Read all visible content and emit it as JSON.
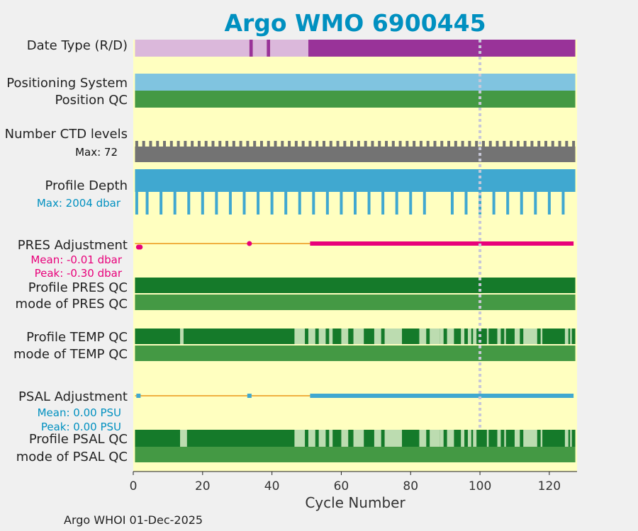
{
  "chart_data": {
    "type": "timeline",
    "title": "Argo WMO 6900445",
    "title_color": "#0090c0",
    "xlabel": "Cycle Number",
    "xlim": [
      0,
      128
    ],
    "xticks": [
      0,
      20,
      40,
      60,
      80,
      100,
      120
    ],
    "marker_cycle": 100,
    "footer": "Argo WHOI 01-Dec-2025",
    "colors": {
      "background": "#ffffc0",
      "realtime": "#dbb8db",
      "delayed": "#993399",
      "positioning": "#80c4e0",
      "qc_good": "#449944",
      "qc_dark": "#157a2a",
      "qc_light": "#bcdcb0",
      "ctd": "#737373",
      "depth": "#40a8d0",
      "pres_adj": "#e8007a",
      "psal_adj": "#40a8d0",
      "adj_line": "#f0b040",
      "marker": "#c8c8d8"
    },
    "rows": [
      {
        "label": "Date Type (R/D)",
        "color": "#222222"
      },
      {
        "label": "Positioning System",
        "color": "#222222"
      },
      {
        "label": "Position QC",
        "color": "#222222"
      },
      {
        "label": "Number CTD levels",
        "color": "#222222"
      },
      {
        "label": "Profile Depth",
        "color": "#222222"
      },
      {
        "label": "PRES Adjustment",
        "color": "#222222"
      },
      {
        "label": "Profile PRES QC",
        "color": "#222222"
      },
      {
        "label": "mode of PRES QC",
        "color": "#222222"
      },
      {
        "label": "Profile TEMP QC",
        "color": "#222222"
      },
      {
        "label": "mode of TEMP QC",
        "color": "#222222"
      },
      {
        "label": "PSAL Adjustment",
        "color": "#222222"
      },
      {
        "label": "Profile PSAL QC",
        "color": "#222222"
      },
      {
        "label": "mode of PSAL QC",
        "color": "#222222"
      }
    ],
    "annotations": {
      "ctd_max": "Max: 72",
      "depth_max": "Max: 2004 dbar",
      "pres_mean": "Mean: -0.01 dbar",
      "pres_peak": "Peak: -0.30 dbar",
      "psal_mean": "Mean: 0.00 PSU",
      "psal_peak": "Peak: 0.00 PSU"
    },
    "data_mode_ranges": [
      {
        "start": 0.5,
        "end": 33.5,
        "mode": "R"
      },
      {
        "start": 33.5,
        "end": 34.5,
        "mode": "D"
      },
      {
        "start": 34.5,
        "end": 38.5,
        "mode": "R"
      },
      {
        "start": 38.5,
        "end": 39.5,
        "mode": "D"
      },
      {
        "start": 39.5,
        "end": 50.5,
        "mode": "R"
      },
      {
        "start": 50.5,
        "end": 127.5,
        "mode": "D"
      }
    ],
    "ctd_spike_cycles": [
      1,
      3,
      5,
      7,
      9,
      11,
      13,
      15,
      17,
      19,
      21,
      23,
      25,
      27,
      29,
      31,
      33,
      35,
      37,
      39,
      41,
      43,
      45,
      47,
      49,
      51,
      53,
      55,
      57,
      59,
      61,
      63,
      65,
      67,
      69,
      71,
      73,
      75,
      77,
      79,
      81,
      83,
      85,
      87,
      89,
      91,
      93,
      95,
      97,
      99,
      101,
      103,
      105,
      107,
      109,
      111,
      113,
      115,
      117,
      119,
      121,
      123,
      125,
      127
    ],
    "depth_deep_cycles": [
      1,
      4,
      8,
      12,
      16,
      20,
      24,
      28,
      32,
      36,
      40,
      44,
      48,
      52,
      56,
      60,
      64,
      68,
      72,
      76,
      80,
      84,
      92,
      96,
      100,
      104,
      108,
      112,
      116,
      120,
      124
    ],
    "adjustment": {
      "pres_points": [
        1.5,
        2,
        33.5
      ],
      "pres_line_start": 51,
      "pres_line_end": 127,
      "psal_points": [
        1.5,
        33.5
      ],
      "psal_line_start": 51,
      "psal_line_end": 127
    },
    "temp_qc_light_segments": [
      [
        13.5,
        14.5
      ],
      [
        46.5,
        49.5
      ],
      [
        50.5,
        52.5
      ],
      [
        53.5,
        55.5
      ],
      [
        56.5,
        57.5
      ],
      [
        60,
        62
      ],
      [
        63.5,
        66.5
      ],
      [
        69.5,
        71.5
      ],
      [
        72.5,
        77.5
      ],
      [
        82.5,
        84.5
      ],
      [
        85.5,
        88.5
      ],
      [
        88.5,
        89.5
      ],
      [
        90.5,
        92.5
      ],
      [
        94.5,
        95.5
      ],
      [
        96.5,
        97.5
      ],
      [
        98,
        99
      ],
      [
        102,
        102.5
      ],
      [
        105,
        106
      ],
      [
        107,
        107.5
      ],
      [
        110,
        111.5
      ],
      [
        112.5,
        116.5
      ],
      [
        117.5,
        118
      ],
      [
        124.5,
        125.5
      ],
      [
        126,
        126.5
      ]
    ],
    "psal_qc_light_segments": [
      [
        13.5,
        15.5
      ],
      [
        46.5,
        49.5
      ],
      [
        50.5,
        52.5
      ],
      [
        53.5,
        55.5
      ],
      [
        56.5,
        57.5
      ],
      [
        60,
        62
      ],
      [
        63.5,
        66.5
      ],
      [
        69.5,
        71.5
      ],
      [
        72.5,
        77.5
      ],
      [
        82.5,
        84.5
      ],
      [
        85.5,
        88.5
      ],
      [
        88.5,
        89.5
      ],
      [
        90.5,
        92.5
      ],
      [
        94.5,
        95.5
      ],
      [
        96.5,
        97.5
      ],
      [
        98,
        99
      ],
      [
        102,
        102.5
      ],
      [
        105,
        106
      ],
      [
        107,
        107.5
      ],
      [
        110,
        111.5
      ],
      [
        112.5,
        116.5
      ],
      [
        117.5,
        118
      ],
      [
        124.5,
        125.5
      ],
      [
        126,
        126.5
      ]
    ]
  }
}
